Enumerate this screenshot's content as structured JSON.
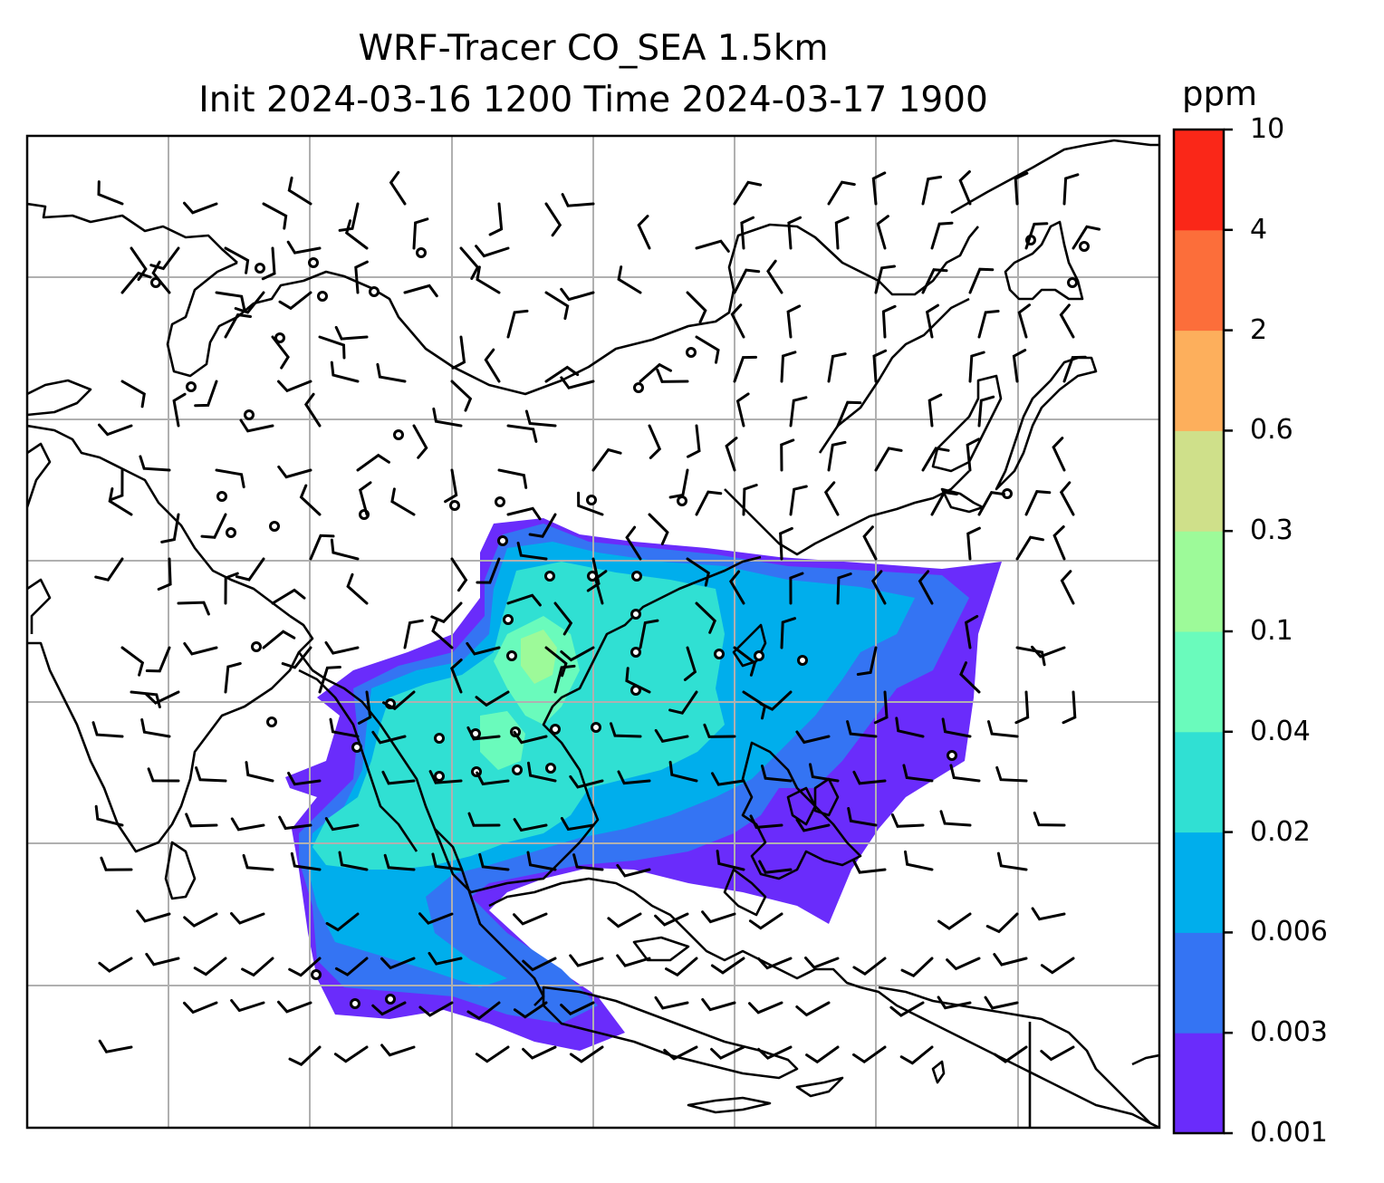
{
  "title": {
    "line1": "WRF-Tracer CO_SEA 1.5km",
    "line2": "Init 2024-03-16 1200 Time 2024-03-17 1900"
  },
  "colorbar": {
    "unit": "ppm",
    "ticks": [
      "0.001",
      "0.003",
      "0.006",
      "0.02",
      "0.04",
      "0.1",
      "0.3",
      "0.6",
      "2",
      "4",
      "10"
    ],
    "colors": [
      "#6a2cfb",
      "#3474f3",
      "#00aeec",
      "#30e0d3",
      "#6afbbc",
      "#9dfa99",
      "#cfe08a",
      "#fdaf5c",
      "#fc6e3a",
      "#fa2718"
    ]
  },
  "map": {
    "gridlines": true,
    "coastline_color": "#000000",
    "gridline_color": "#b0b0b0",
    "plume_levels": [
      "0.001",
      "0.003",
      "0.006",
      "0.02",
      "0.04",
      "0.1"
    ]
  }
}
